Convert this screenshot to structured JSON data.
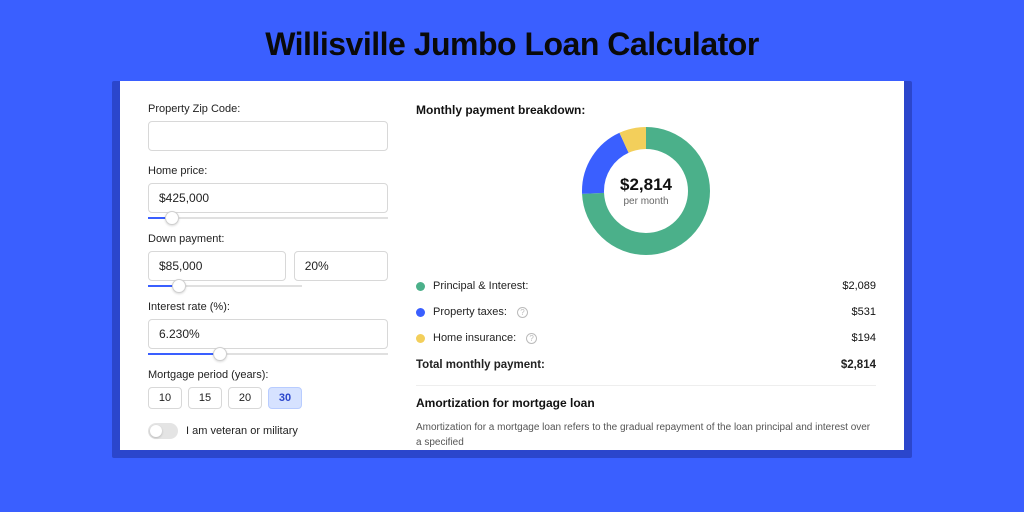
{
  "page": {
    "title": "Willisville Jumbo Loan Calculator",
    "bg_color": "#3a5fff",
    "panel_shadow_color": "#2b46cc",
    "panel_bg": "#ffffff"
  },
  "form": {
    "zip": {
      "label": "Property Zip Code:",
      "value": ""
    },
    "home_price": {
      "label": "Home price:",
      "value": "$425,000",
      "slider_pct": 10
    },
    "down_payment": {
      "label": "Down payment:",
      "amount": "$85,000",
      "pct": "20%",
      "slider_pct": 20
    },
    "interest_rate": {
      "label": "Interest rate (%):",
      "value": "6.230%",
      "slider_pct": 30
    },
    "mortgage_period": {
      "label": "Mortgage period (years):",
      "options": [
        "10",
        "15",
        "20",
        "30"
      ],
      "selected": "30"
    },
    "veteran": {
      "label": "I am veteran or military",
      "checked": false
    }
  },
  "breakdown": {
    "title": "Monthly payment breakdown:",
    "donut": {
      "value": "$2,814",
      "sub": "per month",
      "size": 128,
      "stroke": 22,
      "bg": "#ffffff",
      "slices": [
        {
          "key": "pi",
          "label": "Principal & Interest:",
          "value": "$2,089",
          "color": "#4bb08a",
          "fraction": 0.742,
          "info": false
        },
        {
          "key": "tax",
          "label": "Property taxes:",
          "value": "$531",
          "color": "#3a5fff",
          "fraction": 0.189,
          "info": true
        },
        {
          "key": "ins",
          "label": "Home insurance:",
          "value": "$194",
          "color": "#f3cf5b",
          "fraction": 0.069,
          "info": true
        }
      ]
    },
    "total": {
      "label": "Total monthly payment:",
      "value": "$2,814"
    }
  },
  "amortization": {
    "title": "Amortization for mortgage loan",
    "text": "Amortization for a mortgage loan refers to the gradual repayment of the loan principal and interest over a specified"
  }
}
